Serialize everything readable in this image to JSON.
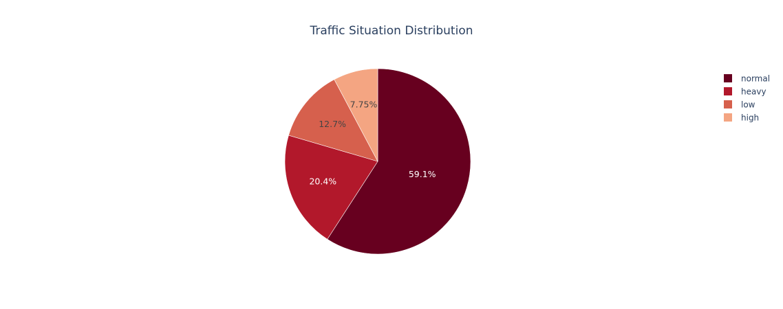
{
  "chart_data": {
    "type": "pie",
    "title": "Traffic Situation Distribution",
    "categories": [
      "normal",
      "heavy",
      "low",
      "high"
    ],
    "values": [
      59.1,
      20.4,
      12.7,
      7.75
    ],
    "labels": [
      "59.1%",
      "20.4%",
      "12.7%",
      "7.75%"
    ],
    "colors": [
      "#67001f",
      "#b2182b",
      "#d6604d",
      "#f4a582"
    ],
    "label_colors": [
      "#ffffff",
      "#ffffff",
      "#444444",
      "#444444"
    ],
    "legend": {
      "placement": "top-right",
      "items": [
        "normal",
        "heavy",
        "low",
        "high"
      ]
    },
    "direction": "clockwise",
    "start_angle": "12 o'clock"
  }
}
